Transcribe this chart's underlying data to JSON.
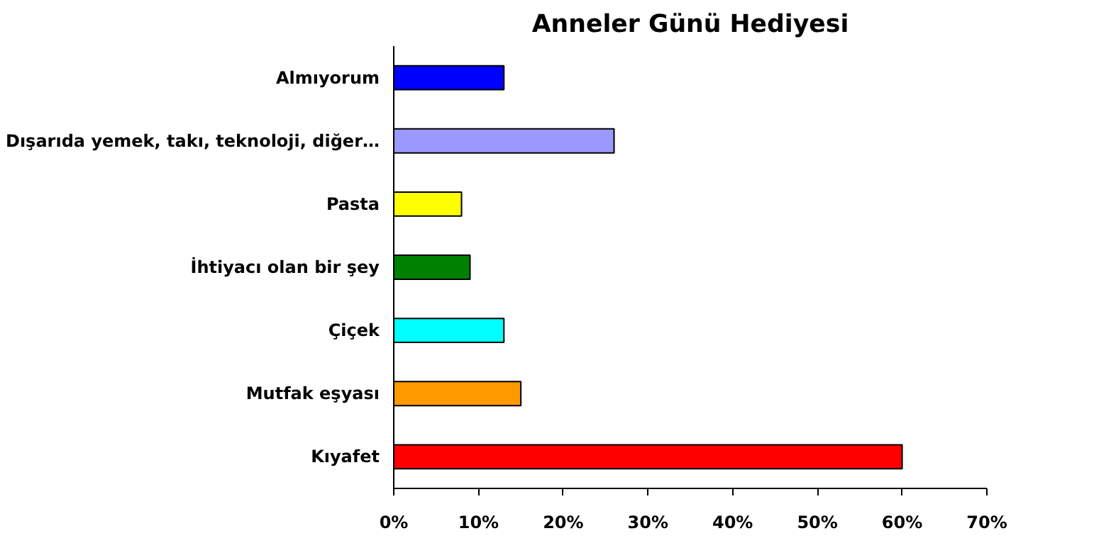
{
  "chart_data": {
    "type": "bar",
    "orientation": "horizontal",
    "title": "Anneler Günü Hediyesi",
    "categories": [
      "Almıyorum",
      "Dışarıda yemek, takı, teknoloji, diğer…",
      "Pasta",
      "İhtiyacı olan bir şey",
      "Çiçek",
      "Mutfak eşyası",
      "Kıyafet"
    ],
    "values": [
      13,
      26,
      8,
      9,
      13,
      15,
      60
    ],
    "colors": [
      "#0000ff",
      "#9999ff",
      "#ffff00",
      "#008000",
      "#00ffff",
      "#ff9900",
      "#ff0000"
    ],
    "xlim": [
      0,
      70
    ],
    "xticks": [
      {
        "value": 0,
        "label": "0%"
      },
      {
        "value": 10,
        "label": "10%"
      },
      {
        "value": 20,
        "label": "20%"
      },
      {
        "value": 30,
        "label": "30%"
      },
      {
        "value": 40,
        "label": "40%"
      },
      {
        "value": 50,
        "label": "50%"
      },
      {
        "value": 60,
        "label": "60%"
      },
      {
        "value": 70,
        "label": "70%"
      }
    ],
    "grid": false
  }
}
